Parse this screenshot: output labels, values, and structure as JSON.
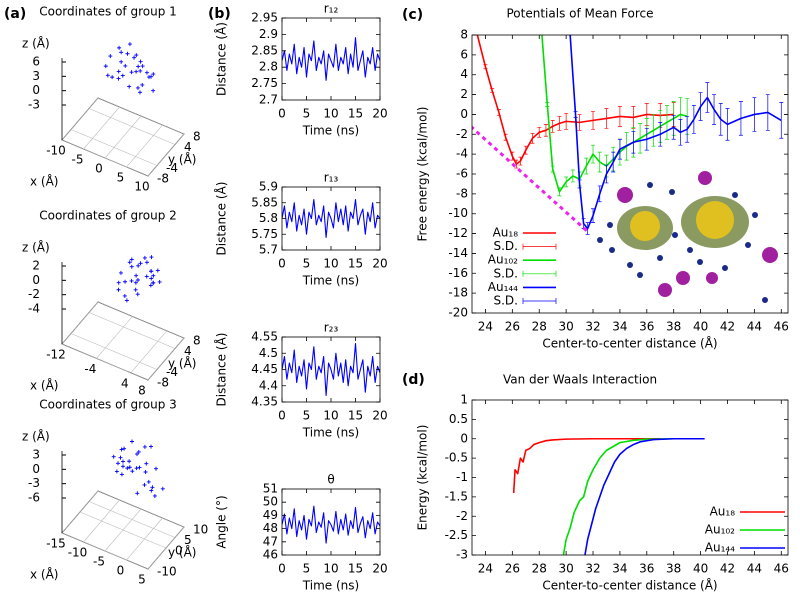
{
  "chart_data": [
    {
      "type": "scatter3d",
      "panel": "(a)",
      "title": "Coordinates of group 1",
      "xlabel": "x (Å)",
      "ylabel": "y (Å)",
      "zlabel": "z (Å)",
      "color": "#0000ff",
      "xlim": [
        -10,
        10
      ],
      "ylim": [
        -8,
        8
      ],
      "zlim": [
        -3,
        6
      ],
      "xticks": [
        -10,
        -5,
        0,
        5,
        10
      ],
      "yticks": [
        -8,
        -4,
        4,
        8
      ],
      "zticks": [
        -3,
        0,
        3,
        6
      ],
      "x": [
        -4,
        -3,
        -2,
        -1,
        0,
        1,
        2,
        3,
        4,
        5,
        6,
        -3,
        -1,
        1,
        3,
        5,
        7,
        -2,
        0,
        2,
        4,
        6,
        -4,
        -2,
        0,
        2,
        4,
        1,
        3,
        5
      ],
      "y": [
        2,
        4,
        3,
        5,
        1,
        4,
        2,
        3,
        0,
        2,
        1,
        -1,
        0,
        -2,
        1,
        -1,
        0,
        3,
        2,
        4,
        3,
        2,
        0,
        -1,
        -2,
        0,
        -1,
        3,
        -3,
        -2
      ],
      "z": [
        4,
        5,
        3,
        6,
        4,
        5,
        3,
        4,
        5,
        3,
        4,
        2,
        3,
        4,
        5,
        3,
        2,
        5,
        6,
        4,
        3,
        4,
        3,
        2,
        3,
        4,
        2,
        5,
        3,
        2
      ]
    },
    {
      "type": "scatter3d",
      "title": "Coordinates of group 2",
      "xlabel": "x (Å)",
      "ylabel": "y (Å)",
      "zlabel": "z (Å)",
      "color": "#0000ff",
      "xlim": [
        -12,
        8
      ],
      "ylim": [
        -8,
        8
      ],
      "zlim": [
        -4,
        2
      ],
      "xticks": [
        -12,
        -4,
        4,
        8
      ],
      "yticks": [
        -8,
        -4,
        4,
        8
      ],
      "zticks": [
        -4,
        -2,
        0,
        2
      ],
      "x": [
        -3,
        -2,
        -1,
        0,
        1,
        2,
        3,
        4,
        5,
        -2,
        0,
        2,
        4,
        -1,
        1,
        3,
        5,
        0,
        2,
        4,
        -3,
        -1,
        1,
        3,
        2,
        4,
        0,
        1,
        3,
        6
      ],
      "y": [
        1,
        3,
        2,
        4,
        0,
        3,
        1,
        2,
        -1,
        -2,
        0,
        -1,
        1,
        2,
        4,
        3,
        0,
        -3,
        -2,
        2,
        0,
        -1,
        1,
        3,
        5,
        4,
        2,
        -4,
        -3,
        1
      ],
      "z": [
        0,
        1,
        2,
        1,
        0,
        2,
        1,
        0,
        1,
        -1,
        0,
        1,
        2,
        1,
        2,
        0,
        1,
        -1,
        0,
        1,
        -1,
        0,
        2,
        1,
        2,
        1,
        0,
        -1,
        0,
        1
      ]
    },
    {
      "type": "scatter3d",
      "title": "Coordinates of group 3",
      "xlabel": "x (Å)",
      "ylabel": "y (Å)",
      "zlabel": "z (Å)",
      "color": "#0000ff",
      "xlim": [
        -15,
        5
      ],
      "ylim": [
        -10,
        10
      ],
      "zlim": [
        -6,
        3
      ],
      "xticks": [
        -15,
        -10,
        -5,
        0,
        5
      ],
      "yticks": [
        -10,
        0,
        5,
        10
      ],
      "zticks": [
        -6,
        -3,
        0,
        3
      ],
      "x": [
        -8,
        -7,
        -6,
        -5,
        -4,
        -3,
        -2,
        -1,
        0,
        1,
        2,
        -6,
        -4,
        -2,
        0,
        2,
        -5,
        -3,
        -1,
        1,
        3,
        -7,
        -5,
        -3,
        -1,
        1,
        -4,
        -2,
        0,
        -6
      ],
      "y": [
        2,
        4,
        3,
        5,
        1,
        4,
        2,
        3,
        0,
        2,
        1,
        -1,
        0,
        -2,
        1,
        -1,
        0,
        3,
        6,
        4,
        3,
        2,
        0,
        -1,
        -2,
        0,
        -3,
        5,
        -4,
        1
      ],
      "z": [
        0,
        1,
        2,
        3,
        1,
        2,
        0,
        -1,
        -2,
        -3,
        -4,
        -1,
        0,
        1,
        2,
        -2,
        1,
        2,
        3,
        0,
        -3,
        -1,
        0,
        1,
        2,
        -1,
        0,
        3,
        -2,
        1
      ]
    },
    {
      "type": "line",
      "panel": "(b)",
      "title": "r₁₂",
      "xlabel": "Time (ns)",
      "ylabel": "Distance (Å)",
      "color": "#0000ff",
      "xlim": [
        0,
        20
      ],
      "ylim": [
        2.7,
        2.95
      ],
      "xticks": [
        0,
        5,
        10,
        15,
        20
      ],
      "yticks": [
        2.7,
        2.75,
        2.8,
        2.85,
        2.9,
        2.95
      ],
      "x": [
        0,
        0.5,
        1,
        1.5,
        2,
        2.5,
        3,
        3.5,
        4,
        4.5,
        5,
        5.5,
        6,
        6.5,
        7,
        7.5,
        8,
        8.5,
        9,
        9.5,
        10,
        10.5,
        11,
        11.5,
        12,
        12.5,
        13,
        13.5,
        14,
        14.5,
        15,
        15.5,
        16,
        16.5,
        17,
        17.5,
        18,
        18.5,
        19,
        19.5,
        20
      ],
      "values": [
        2.82,
        2.85,
        2.79,
        2.84,
        2.81,
        2.87,
        2.78,
        2.83,
        2.8,
        2.86,
        2.77,
        2.84,
        2.82,
        2.88,
        2.79,
        2.83,
        2.81,
        2.85,
        2.76,
        2.84,
        2.82,
        2.8,
        2.87,
        2.79,
        2.83,
        2.81,
        2.86,
        2.78,
        2.84,
        2.8,
        2.89,
        2.79,
        2.82,
        2.85,
        2.77,
        2.83,
        2.81,
        2.86,
        2.79,
        2.84,
        2.82
      ]
    },
    {
      "type": "line",
      "title": "r₁₃",
      "xlabel": "Time (ns)",
      "ylabel": "Distance (Å)",
      "color": "#0000ff",
      "xlim": [
        0,
        20
      ],
      "ylim": [
        5.7,
        5.9
      ],
      "xticks": [
        0,
        5,
        10,
        15,
        20
      ],
      "yticks": [
        5.7,
        5.75,
        5.8,
        5.85,
        5.9
      ],
      "x": [
        0,
        0.5,
        1,
        1.5,
        2,
        2.5,
        3,
        3.5,
        4,
        4.5,
        5,
        5.5,
        6,
        6.5,
        7,
        7.5,
        8,
        8.5,
        9,
        9.5,
        10,
        10.5,
        11,
        11.5,
        12,
        12.5,
        13,
        13.5,
        14,
        14.5,
        15,
        15.5,
        16,
        16.5,
        17,
        17.5,
        18,
        18.5,
        19,
        19.5,
        20
      ],
      "values": [
        5.8,
        5.84,
        5.77,
        5.82,
        5.79,
        5.85,
        5.76,
        5.81,
        5.78,
        5.83,
        5.75,
        5.82,
        5.8,
        5.86,
        5.78,
        5.81,
        5.79,
        5.84,
        5.74,
        5.82,
        5.8,
        5.77,
        5.85,
        5.79,
        5.83,
        5.78,
        5.84,
        5.76,
        5.82,
        5.8,
        5.86,
        5.78,
        5.81,
        5.83,
        5.75,
        5.82,
        5.79,
        5.85,
        5.77,
        5.81,
        5.8
      ]
    },
    {
      "type": "line",
      "title": "r₂₃",
      "xlabel": "Time (ns)",
      "ylabel": "Distance (Å)",
      "color": "#0000ff",
      "xlim": [
        0,
        20
      ],
      "ylim": [
        4.35,
        4.55
      ],
      "xticks": [
        0,
        5,
        10,
        15,
        20
      ],
      "yticks": [
        4.35,
        4.4,
        4.45,
        4.5,
        4.55
      ],
      "x": [
        0,
        0.5,
        1,
        1.5,
        2,
        2.5,
        3,
        3.5,
        4,
        4.5,
        5,
        5.5,
        6,
        6.5,
        7,
        7.5,
        8,
        8.5,
        9,
        9.5,
        10,
        10.5,
        11,
        11.5,
        12,
        12.5,
        13,
        13.5,
        14,
        14.5,
        15,
        15.5,
        16,
        16.5,
        17,
        17.5,
        18,
        18.5,
        19,
        19.5,
        20
      ],
      "values": [
        4.45,
        4.49,
        4.42,
        4.47,
        4.44,
        4.51,
        4.41,
        4.46,
        4.43,
        4.48,
        4.39,
        4.47,
        4.45,
        4.52,
        4.42,
        4.46,
        4.44,
        4.49,
        4.37,
        4.47,
        4.45,
        4.42,
        4.5,
        4.43,
        4.47,
        4.41,
        4.48,
        4.4,
        4.46,
        4.44,
        4.53,
        4.42,
        4.45,
        4.48,
        4.38,
        4.46,
        4.43,
        4.49,
        4.41,
        4.46,
        4.44
      ]
    },
    {
      "type": "line",
      "title": "θ",
      "xlabel": "Time (ns)",
      "ylabel": "Angle (°)",
      "color": "#0000ff",
      "xlim": [
        0,
        20
      ],
      "ylim": [
        46,
        51
      ],
      "xticks": [
        0,
        5,
        10,
        15,
        20
      ],
      "yticks": [
        46,
        47,
        48,
        49,
        50,
        51
      ],
      "x": [
        0,
        0.5,
        1,
        1.5,
        2,
        2.5,
        3,
        3.5,
        4,
        4.5,
        5,
        5.5,
        6,
        6.5,
        7,
        7.5,
        8,
        8.5,
        9,
        9.5,
        10,
        10.5,
        11,
        11.5,
        12,
        12.5,
        13,
        13.5,
        14,
        14.5,
        15,
        15.5,
        16,
        16.5,
        17,
        17.5,
        18,
        18.5,
        19,
        19.5,
        20
      ],
      "values": [
        48.3,
        49.1,
        47.6,
        48.8,
        48.0,
        49.5,
        47.4,
        48.6,
        47.9,
        49.0,
        47.2,
        48.7,
        48.2,
        49.7,
        47.7,
        48.5,
        48.1,
        49.2,
        46.9,
        48.6,
        48.3,
        47.8,
        49.3,
        47.6,
        48.7,
        47.9,
        49.1,
        47.5,
        48.6,
        48.0,
        49.6,
        47.7,
        48.4,
        48.9,
        47.3,
        48.6,
        48.0,
        49.2,
        47.6,
        48.5,
        48.2
      ]
    },
    {
      "type": "line",
      "panel": "(c)",
      "title": "Potentials of Mean Force",
      "xlabel": "Center-to-center distance (Å)",
      "ylabel": "Free energy (kcal/mol)",
      "legend": "left",
      "xlim": [
        23,
        46.5
      ],
      "ylim": [
        -20,
        8
      ],
      "xticks": [
        24,
        26,
        28,
        30,
        32,
        34,
        36,
        38,
        40,
        42,
        44,
        46
      ],
      "yticks": [
        -20,
        -18,
        -16,
        -14,
        -12,
        -10,
        -8,
        -6,
        -4,
        -2,
        0,
        2,
        4,
        6,
        8
      ],
      "series": [
        {
          "name": "Au₁₈",
          "color": "#ff0000",
          "x": [
            23.4,
            24,
            24.5,
            25,
            25.5,
            26,
            26.3,
            26.6,
            27,
            27.5,
            28,
            28.5,
            29,
            29.5,
            30,
            31,
            32,
            33,
            34,
            35,
            36,
            37,
            38
          ],
          "values": [
            8,
            4.8,
            2.4,
            0.2,
            -2.3,
            -4.2,
            -5,
            -4.7,
            -3.6,
            -2.4,
            -1.8,
            -1.6,
            -1.2,
            -0.9,
            -0.7,
            -0.8,
            -0.6,
            -0.4,
            -0.2,
            -0.3,
            0,
            -0.1,
            0
          ]
        },
        {
          "name": "S.D.",
          "color": "#ff0000",
          "values": [
            0,
            0.2,
            0.2,
            0.3,
            0.3,
            0.4,
            0.4,
            0.4,
            0.4,
            0.5,
            0.5,
            0.6,
            0.6,
            0.7,
            0.8,
            0.8,
            0.9,
            1,
            1,
            1.1,
            1.1,
            1.2,
            1.2
          ]
        },
        {
          "name": "Au₁₀₂",
          "color": "#00dd00",
          "x": [
            28.2,
            28.6,
            29,
            29.5,
            30,
            30.5,
            31,
            31.5,
            32,
            32.5,
            33,
            33.5,
            34,
            34.5,
            35,
            35.5,
            36,
            36.5,
            37,
            37.5,
            38,
            38.5,
            39
          ],
          "values": [
            8,
            1,
            -5.5,
            -7.8,
            -6.8,
            -6.2,
            -6.5,
            -5.2,
            -4,
            -4.8,
            -5.2,
            -4.5,
            -3.8,
            -3.2,
            -2.8,
            -2.4,
            -2,
            -1.6,
            -1.2,
            -0.8,
            -0.4,
            0,
            -0.2
          ]
        },
        {
          "name": "S.D.",
          "color": "#00dd00",
          "values": [
            0,
            0.2,
            0.3,
            0.4,
            0.5,
            0.6,
            0.7,
            0.8,
            0.9,
            1,
            1.1,
            1.2,
            1.3,
            1.4,
            1.5,
            1.5,
            1.6,
            1.6,
            1.6,
            1.7,
            1.7,
            1.7,
            1.8
          ]
        },
        {
          "name": "Au₁₄₄",
          "color": "#0000ff",
          "x": [
            30.3,
            30.7,
            31,
            31.3,
            31.6,
            32,
            32.5,
            33,
            33.5,
            34,
            35,
            36,
            37,
            38,
            38.5,
            39,
            39.5,
            40,
            40.5,
            41,
            41.5,
            42,
            43,
            44,
            45,
            46
          ],
          "values": [
            8,
            0,
            -7,
            -11,
            -11.5,
            -10.2,
            -8,
            -6,
            -4.8,
            -3.5,
            -2.8,
            -2.5,
            -2,
            -1.3,
            -1.8,
            -1.5,
            -0.5,
            0.8,
            1.7,
            0.5,
            -0.5,
            -1,
            -0.4,
            0,
            0.2,
            -0.6
          ]
        },
        {
          "name": "S.D.",
          "color": "#0000ff",
          "values": [
            0,
            0.3,
            0.4,
            0.5,
            0.6,
            0.7,
            0.8,
            0.9,
            1,
            1,
            1.1,
            1.1,
            1.2,
            1.2,
            1.3,
            1.3,
            1.4,
            1.4,
            1.5,
            1.5,
            1.6,
            1.6,
            1.7,
            1.7,
            1.8,
            1.8
          ]
        }
      ],
      "guide_line": {
        "color": "#ee22ee",
        "x": [
          22.9,
          31.6
        ],
        "values": [
          -1.2,
          -11.8
        ]
      }
    },
    {
      "type": "line",
      "panel": "(d)",
      "title": "Van der Waals Interaction",
      "xlabel": "Center-to-center distance (Å)",
      "ylabel": "Energy (kcal/mol)",
      "legend": "lower right",
      "xlim": [
        23,
        46.5
      ],
      "ylim": [
        -3,
        1
      ],
      "xticks": [
        24,
        26,
        28,
        30,
        32,
        34,
        36,
        38,
        40,
        42,
        44,
        46
      ],
      "yticks": [
        -3,
        -2.5,
        -2,
        -1.5,
        -1,
        -0.5,
        0,
        0.5,
        1
      ],
      "series": [
        {
          "name": "Au₁₈",
          "color": "#ff0000",
          "x": [
            26.1,
            26.2,
            26.4,
            26.6,
            26.8,
            27,
            27.3,
            27.6,
            28,
            28.5,
            29,
            30,
            32,
            34,
            37
          ],
          "values": [
            -1.4,
            -0.8,
            -0.9,
            -0.5,
            -0.6,
            -0.3,
            -0.25,
            -0.15,
            -0.1,
            -0.05,
            -0.03,
            -0.01,
            0,
            0,
            0
          ]
        },
        {
          "name": "Au₁₀₂",
          "color": "#00dd00",
          "x": [
            29.8,
            30,
            30.3,
            30.6,
            31,
            31.3,
            31.6,
            32,
            32.5,
            33,
            33.5,
            34,
            35,
            36,
            38
          ],
          "values": [
            -3,
            -2.6,
            -2.3,
            -1.9,
            -1.6,
            -1.5,
            -1.1,
            -0.8,
            -0.5,
            -0.3,
            -0.2,
            -0.1,
            -0.04,
            -0.01,
            0
          ]
        },
        {
          "name": "Au₁₄₄",
          "color": "#0000ff",
          "x": [
            31.4,
            31.6,
            31.9,
            32.2,
            32.5,
            32.8,
            33.2,
            33.6,
            34,
            34.5,
            35,
            35.5,
            36.5,
            38,
            40.3
          ],
          "values": [
            -3,
            -2.6,
            -2.2,
            -1.8,
            -1.5,
            -1.2,
            -0.9,
            -0.6,
            -0.4,
            -0.25,
            -0.15,
            -0.08,
            -0.02,
            0,
            0
          ]
        }
      ]
    }
  ]
}
